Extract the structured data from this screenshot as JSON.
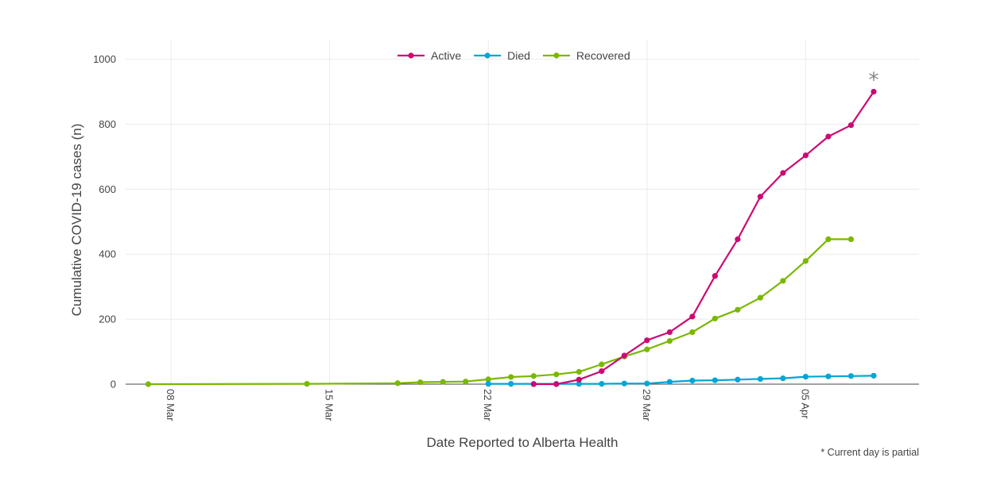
{
  "chart_data": {
    "type": "line",
    "xlabel": "Date Reported to Alberta Health",
    "ylabel": "Cumulative COVID-19 cases (n)",
    "ylim": [
      0,
      1060
    ],
    "yticks": [
      0,
      200,
      400,
      600,
      800,
      1000
    ],
    "xticks": [
      {
        "date": "2020-03-08",
        "label": "08 Mar"
      },
      {
        "date": "2020-03-15",
        "label": "15 Mar"
      },
      {
        "date": "2020-03-22",
        "label": "22 Mar"
      },
      {
        "date": "2020-03-29",
        "label": "29 Mar"
      },
      {
        "date": "2020-04-05",
        "label": "05 Apr"
      }
    ],
    "xrange": [
      "2020-03-06",
      "2020-04-10"
    ],
    "grid": true,
    "legend_position": "top-center",
    "annotation": "*",
    "note": "* Current day is partial",
    "series": [
      {
        "name": "Active",
        "color": "#cc0a73",
        "points": [
          {
            "x": "2020-03-24",
            "y": 0
          },
          {
            "x": "2020-03-25",
            "y": 0
          },
          {
            "x": "2020-03-26",
            "y": 14
          },
          {
            "x": "2020-03-27",
            "y": 40
          },
          {
            "x": "2020-03-28",
            "y": 88
          },
          {
            "x": "2020-03-29",
            "y": 135
          },
          {
            "x": "2020-03-30",
            "y": 160
          },
          {
            "x": "2020-03-31",
            "y": 208
          },
          {
            "x": "2020-04-01",
            "y": 333
          },
          {
            "x": "2020-04-02",
            "y": 446
          },
          {
            "x": "2020-04-03",
            "y": 577
          },
          {
            "x": "2020-04-04",
            "y": 650
          },
          {
            "x": "2020-04-05",
            "y": 704
          },
          {
            "x": "2020-04-06",
            "y": 762
          },
          {
            "x": "2020-04-07",
            "y": 797
          },
          {
            "x": "2020-04-08",
            "y": 900
          }
        ]
      },
      {
        "name": "Died",
        "color": "#00a6d6",
        "points": [
          {
            "x": "2020-03-22",
            "y": 1
          },
          {
            "x": "2020-03-23",
            "y": 1
          },
          {
            "x": "2020-03-24",
            "y": 1
          },
          {
            "x": "2020-03-25",
            "y": 1
          },
          {
            "x": "2020-03-26",
            "y": 1
          },
          {
            "x": "2020-03-27",
            "y": 1
          },
          {
            "x": "2020-03-28",
            "y": 2
          },
          {
            "x": "2020-03-29",
            "y": 2
          },
          {
            "x": "2020-03-30",
            "y": 7
          },
          {
            "x": "2020-03-31",
            "y": 11
          },
          {
            "x": "2020-04-01",
            "y": 12
          },
          {
            "x": "2020-04-02",
            "y": 14
          },
          {
            "x": "2020-04-03",
            "y": 16
          },
          {
            "x": "2020-04-04",
            "y": 18
          },
          {
            "x": "2020-04-05",
            "y": 23
          },
          {
            "x": "2020-04-06",
            "y": 24
          },
          {
            "x": "2020-04-07",
            "y": 25
          },
          {
            "x": "2020-04-08",
            "y": 26
          }
        ]
      },
      {
        "name": "Recovered",
        "color": "#7ab800",
        "points": [
          {
            "x": "2020-03-07",
            "y": 0
          },
          {
            "x": "2020-03-14",
            "y": 1
          },
          {
            "x": "2020-03-18",
            "y": 3
          },
          {
            "x": "2020-03-19",
            "y": 6
          },
          {
            "x": "2020-03-20",
            "y": 7
          },
          {
            "x": "2020-03-21",
            "y": 8
          },
          {
            "x": "2020-03-22",
            "y": 15
          },
          {
            "x": "2020-03-23",
            "y": 22
          },
          {
            "x": "2020-03-24",
            "y": 25
          },
          {
            "x": "2020-03-25",
            "y": 30
          },
          {
            "x": "2020-03-26",
            "y": 38
          },
          {
            "x": "2020-03-27",
            "y": 61
          },
          {
            "x": "2020-03-28",
            "y": 85
          },
          {
            "x": "2020-03-29",
            "y": 107
          },
          {
            "x": "2020-03-30",
            "y": 133
          },
          {
            "x": "2020-03-31",
            "y": 160
          },
          {
            "x": "2020-04-01",
            "y": 202
          },
          {
            "x": "2020-04-02",
            "y": 229
          },
          {
            "x": "2020-04-03",
            "y": 266
          },
          {
            "x": "2020-04-04",
            "y": 318
          },
          {
            "x": "2020-04-05",
            "y": 379
          },
          {
            "x": "2020-04-06",
            "y": 446
          },
          {
            "x": "2020-04-07",
            "y": 446
          }
        ]
      }
    ]
  }
}
